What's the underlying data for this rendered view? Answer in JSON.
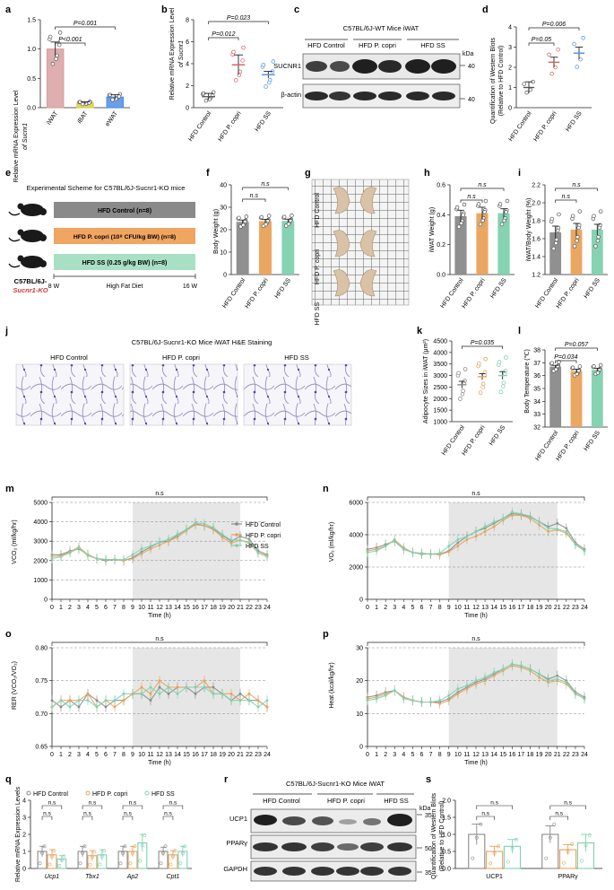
{
  "colors": {
    "control": "#8a8a8a",
    "pcopri": "#e8a25a",
    "ss": "#7fd1b0",
    "red": "#e05a5a",
    "blue": "#4d8fe6",
    "iwat": "#d9a0a0",
    "ibat": "#d9d04a",
    "ewat": "#4d8fe6",
    "axis": "#222222",
    "grid": "#cfcfcf",
    "night": "#e6e6e6"
  },
  "panels": {
    "a": {
      "letter": "a",
      "ylabel_1": "Relative mRNA Expression Level",
      "ylabel_2": "of Sucnr1",
      "yticks": [
        "0.0",
        "0.5",
        "1.0",
        "1.5"
      ],
      "cats": [
        "iWAT",
        "iBAT",
        "eWAT"
      ],
      "p1": "P=0.001",
      "p2": "P<0.001"
    },
    "b": {
      "letter": "b",
      "ylabel_1": "Relative mRNA Expression Level",
      "ylabel_2": "of Sucnr1",
      "yticks": [
        "0",
        "2",
        "4",
        "6",
        "8"
      ],
      "cats": [
        "HFD Control",
        "HFD P. copri",
        "HFD SS"
      ],
      "p1": "P=0.023",
      "p2": "P=0.012"
    },
    "c": {
      "letter": "c",
      "title": "C57BL/6J-WT Mice iWAT",
      "groups": [
        "HFD Control",
        "HFD P. copri",
        "HFD SS"
      ],
      "kda": "kDa",
      "bands": [
        "SUCNR1",
        "β-actin"
      ],
      "mw": [
        "40",
        "40"
      ]
    },
    "d": {
      "letter": "d",
      "ylabel_1": "Quantification of Western Blots",
      "ylabel_2": "(Relative to HFD Control)",
      "yticks": [
        "0",
        "1",
        "2",
        "3",
        "4"
      ],
      "cats": [
        "HFD Control",
        "HFD P. copri",
        "HFD SS"
      ],
      "p1": "P=0.006",
      "p2": "P=0.05"
    },
    "e": {
      "letter": "e",
      "title": "Experimental Scheme for C57BL/6J-Sucnr1-KO mice",
      "bars": [
        "HFD Control (n=8)",
        "HFD P. copri (10⁸ CFU/kg BW) (n=8)",
        "HFD SS (0.25 g/kg BW) (n=8)"
      ],
      "mouse_1": "C57BL/6J-",
      "mouse_2": "Sucnr1-KO",
      "start": "8 W",
      "mid": "High Fat Diet",
      "end": "16 W"
    },
    "f": {
      "letter": "f",
      "ylabel": "Body Weight (g)",
      "yticks": [
        "0",
        "10",
        "20",
        "30",
        "40"
      ],
      "cats": [
        "HFD Control",
        "HFD P. copri",
        "HFD SS"
      ],
      "p1": "n.s",
      "p2": "n.s"
    },
    "g": {
      "letter": "g",
      "rows": [
        "HFD Control",
        "HFD P. copri",
        "HFD SS"
      ]
    },
    "h": {
      "letter": "h",
      "ylabel": "iWAT Weight (g)",
      "yticks": [
        "0.0",
        "0.2",
        "0.4",
        "0.6"
      ],
      "cats": [
        "HFD Control",
        "HFD P. copri",
        "HFD SS"
      ],
      "p1": "n.s",
      "p2": "n.s"
    },
    "i": {
      "letter": "i",
      "ylabel": "iWAT/Body Weight (%)",
      "yticks": [
        "1.2",
        "1.4",
        "1.6",
        "1.8",
        "2.0",
        "2.2"
      ],
      "cats": [
        "HFD Control",
        "HFD P. copri",
        "HFD SS"
      ],
      "p1": "n.s",
      "p2": "n.s"
    },
    "j": {
      "letter": "j",
      "title": "C57BL/6J-Sucnr1-KO Mice iWAT H&E Staining",
      "groups": [
        "HFD Control",
        "HFD P. copri",
        "HFD SS"
      ]
    },
    "k": {
      "letter": "k",
      "ylabel": "Adipocyte Sizes in iWAT (μm²)",
      "yticks": [
        "1000",
        "1500",
        "2000",
        "2500",
        "3000",
        "3500",
        "4000",
        "4500"
      ],
      "cats": [
        "HFD Control",
        "HFD P. copri",
        "HFD SS"
      ],
      "p1": "P=0.035",
      "p2": "n.s"
    },
    "l": {
      "letter": "l",
      "ylabel": "Body Temperature (℃)",
      "yticks": [
        "32",
        "33",
        "34",
        "35",
        "36",
        "37",
        "38"
      ],
      "cats": [
        "HFD Control",
        "HFD P. copri",
        "HFD SS"
      ],
      "p1": "P=0.057",
      "p2": "P=0.034"
    },
    "m": {
      "letter": "m",
      "ylabel": "VCO₂ (ml/kg/hr)",
      "xlabel": "Time (h)",
      "ns": "n.s",
      "yticks": [
        "0",
        "1000",
        "2000",
        "3000",
        "4000",
        "5000"
      ],
      "legend": [
        "HFD Control",
        "HFD P. copri",
        "HFD SS"
      ]
    },
    "n": {
      "letter": "n",
      "ylabel": "VO₂ (ml/kg/hr)",
      "xlabel": "Time (h)",
      "ns": "n.s",
      "yticks": [
        "0",
        "2000",
        "4000",
        "6000"
      ]
    },
    "o": {
      "letter": "o",
      "ylabel": "RER (VCO₂/VO₂)",
      "xlabel": "Time (h)",
      "ns": "n.s",
      "yticks": [
        "0.65",
        "0.70",
        "0.75",
        "0.80"
      ]
    },
    "p": {
      "letter": "p",
      "ylabel": "Heat (kcal/kg/hr)",
      "xlabel": "Time (h)",
      "ns": "n.s",
      "yticks": [
        "0",
        "10",
        "20",
        "30"
      ]
    },
    "q": {
      "letter": "q",
      "ylabel": "Relative mRNA Expression Levels",
      "yticks": [
        "0",
        "1",
        "2",
        "3",
        "4"
      ],
      "genes": [
        "Ucp1",
        "Tbx1",
        "Ap2",
        "Cpt1"
      ],
      "legend": [
        "HFD Control",
        "HFD P. copri",
        "HFD SS"
      ],
      "ns": "n.s"
    },
    "r": {
      "letter": "r",
      "title": "C57BL/6J-Sucnr1-KO Mice iWAT",
      "groups": [
        "HFD Control",
        "HFD P. copri",
        "HFD SS"
      ],
      "kda": "kDa",
      "bands": [
        "UCP1",
        "PPARγ",
        "GAPDH"
      ],
      "mw": [
        "35",
        "50",
        "35"
      ]
    },
    "s": {
      "letter": "s",
      "ylabel_1": "Quantification of Western Blots",
      "ylabel_2": "(Relative to HFD Control)",
      "yticks": [
        "0.0",
        "0.5",
        "1.0",
        "1.5",
        "2.0"
      ],
      "cats": [
        "UCP1",
        "PPARγ"
      ],
      "ns": "n.s"
    }
  },
  "xtime": [
    "0",
    "1",
    "2",
    "3",
    "4",
    "5",
    "6",
    "7",
    "8",
    "9",
    "10",
    "11",
    "12",
    "13",
    "14",
    "15",
    "16",
    "17",
    "18",
    "19",
    "20",
    "21",
    "22",
    "23",
    "24"
  ],
  "chart_data": [
    {
      "panel": "a",
      "type": "bar",
      "categories": [
        "iWAT",
        "iBAT",
        "eWAT"
      ],
      "values": [
        1.0,
        0.08,
        0.18
      ],
      "errors": [
        0.12,
        0.02,
        0.04
      ],
      "ylim": [
        0,
        1.5
      ]
    },
    {
      "panel": "b",
      "type": "bar",
      "categories": [
        "HFD Control",
        "HFD P. copri",
        "HFD SS"
      ],
      "values": [
        1.0,
        3.9,
        3.0
      ],
      "errors": [
        0.3,
        0.9,
        0.3
      ],
      "ylim": [
        0,
        8
      ]
    },
    {
      "panel": "d",
      "type": "bar",
      "categories": [
        "HFD Control",
        "HFD P. copri",
        "HFD SS"
      ],
      "values": [
        1.0,
        2.25,
        2.7
      ],
      "errors": [
        0.28,
        0.25,
        0.3
      ],
      "ylim": [
        0,
        4
      ]
    },
    {
      "panel": "f",
      "type": "bar",
      "categories": [
        "HFD Control",
        "HFD P. copri",
        "HFD SS"
      ],
      "values": [
        23.5,
        23.8,
        23.9
      ],
      "errors": [
        0.8,
        0.8,
        0.8
      ],
      "ylim": [
        0,
        40
      ]
    },
    {
      "panel": "h",
      "type": "bar",
      "categories": [
        "HFD Control",
        "HFD P. copri",
        "HFD SS"
      ],
      "values": [
        0.39,
        0.41,
        0.41
      ],
      "errors": [
        0.04,
        0.04,
        0.03
      ],
      "ylim": [
        0,
        0.6
      ]
    },
    {
      "panel": "i",
      "type": "bar",
      "categories": [
        "HFD Control",
        "HFD P. copri",
        "HFD SS"
      ],
      "values": [
        1.67,
        1.7,
        1.7
      ],
      "errors": [
        0.07,
        0.07,
        0.06
      ],
      "ylim": [
        1.2,
        2.2
      ]
    },
    {
      "panel": "k",
      "type": "scatter",
      "categories": [
        "HFD Control",
        "HFD P. copri",
        "HFD SS"
      ],
      "values": [
        2600,
        2950,
        3000
      ],
      "errors": [
        150,
        130,
        170
      ],
      "ylim": [
        1000,
        4500
      ]
    },
    {
      "panel": "l",
      "type": "bar",
      "categories": [
        "HFD Control",
        "HFD P. copri",
        "HFD SS"
      ],
      "values": [
        36.7,
        36.35,
        36.45
      ],
      "errors": [
        0.1,
        0.15,
        0.12
      ],
      "ylim": [
        32,
        38
      ]
    },
    {
      "panel": "m",
      "type": "line",
      "xlim": [
        0,
        24
      ],
      "ylim": [
        0,
        5000
      ],
      "dark_phase": [
        9,
        21
      ],
      "x": [
        0,
        1,
        2,
        3,
        4,
        5,
        6,
        7,
        8,
        9,
        10,
        11,
        12,
        13,
        14,
        15,
        16,
        17,
        18,
        19,
        20,
        21,
        22,
        23,
        24
      ],
      "series": [
        {
          "name": "HFD Control",
          "values": [
            2300,
            2300,
            2500,
            2600,
            2300,
            2100,
            2000,
            2050,
            2000,
            2150,
            2450,
            2700,
            2950,
            3000,
            3300,
            3600,
            3900,
            3800,
            3650,
            3300,
            3000,
            3250,
            3100,
            2500,
            2300
          ]
        },
        {
          "name": "HFD P. copri",
          "values": [
            2200,
            2250,
            2450,
            2700,
            2300,
            2100,
            2050,
            2050,
            2000,
            2100,
            2350,
            2600,
            2800,
            3000,
            3200,
            3550,
            3850,
            3800,
            3600,
            3200,
            2900,
            3050,
            2900,
            2400,
            2250
          ]
        },
        {
          "name": "HFD SS",
          "values": [
            2100,
            2200,
            2400,
            2650,
            2250,
            2100,
            2050,
            2050,
            2050,
            2300,
            2600,
            2750,
            2950,
            3100,
            3350,
            3600,
            3950,
            3900,
            3700,
            3350,
            3050,
            3050,
            2950,
            2400,
            2200
          ]
        }
      ]
    },
    {
      "panel": "n",
      "type": "line",
      "xlim": [
        0,
        24
      ],
      "ylim": [
        0,
        6000
      ],
      "dark_phase": [
        9,
        21
      ],
      "x": [
        0,
        1,
        2,
        3,
        4,
        5,
        6,
        7,
        8,
        9,
        10,
        11,
        12,
        13,
        14,
        15,
        16,
        17,
        18,
        19,
        20,
        21,
        22,
        23,
        24
      ],
      "series": [
        {
          "name": "HFD Control",
          "values": [
            3100,
            3200,
            3400,
            3600,
            3100,
            2900,
            2800,
            2800,
            2800,
            3000,
            3500,
            3900,
            4200,
            4400,
            4700,
            5000,
            5300,
            5250,
            5100,
            4800,
            4500,
            4700,
            4400,
            3500,
            3100
          ]
        },
        {
          "name": "HFD P. copri",
          "values": [
            3000,
            3100,
            3300,
            3700,
            3200,
            2900,
            2850,
            2800,
            2750,
            2950,
            3300,
            3700,
            3900,
            4200,
            4500,
            4900,
            5200,
            5200,
            5000,
            4600,
            4200,
            4300,
            4100,
            3400,
            3000
          ]
        },
        {
          "name": "HFD SS",
          "values": [
            2900,
            3000,
            3300,
            3650,
            3100,
            2900,
            2850,
            2800,
            2850,
            3300,
            3700,
            3900,
            4200,
            4500,
            4800,
            5000,
            5400,
            5300,
            5150,
            4800,
            4400,
            4350,
            4200,
            3400,
            3000
          ]
        }
      ]
    },
    {
      "panel": "o",
      "type": "line",
      "xlim": [
        0,
        24
      ],
      "ylim": [
        0.65,
        0.8
      ],
      "dark_phase": [
        9,
        21
      ],
      "x": [
        0,
        1,
        2,
        3,
        4,
        5,
        6,
        7,
        8,
        9,
        10,
        11,
        12,
        13,
        14,
        15,
        16,
        17,
        18,
        19,
        20,
        21,
        22,
        23,
        24
      ],
      "series": [
        {
          "name": "HFD Control",
          "values": [
            0.72,
            0.71,
            0.72,
            0.71,
            0.73,
            0.72,
            0.71,
            0.72,
            0.72,
            0.73,
            0.73,
            0.72,
            0.74,
            0.73,
            0.74,
            0.74,
            0.73,
            0.74,
            0.74,
            0.73,
            0.72,
            0.73,
            0.72,
            0.72,
            0.71
          ]
        },
        {
          "name": "HFD P. copri",
          "values": [
            0.71,
            0.72,
            0.72,
            0.72,
            0.73,
            0.71,
            0.72,
            0.71,
            0.72,
            0.73,
            0.74,
            0.73,
            0.75,
            0.74,
            0.74,
            0.74,
            0.74,
            0.75,
            0.73,
            0.73,
            0.73,
            0.72,
            0.73,
            0.72,
            0.71
          ]
        },
        {
          "name": "HFD SS",
          "values": [
            0.71,
            0.72,
            0.71,
            0.72,
            0.72,
            0.71,
            0.72,
            0.72,
            0.73,
            0.73,
            0.73,
            0.74,
            0.73,
            0.74,
            0.73,
            0.74,
            0.74,
            0.74,
            0.73,
            0.73,
            0.72,
            0.72,
            0.72,
            0.71,
            0.72
          ]
        }
      ]
    },
    {
      "panel": "p",
      "type": "line",
      "xlim": [
        0,
        24
      ],
      "ylim": [
        0,
        30
      ],
      "dark_phase": [
        9,
        21
      ],
      "x": [
        0,
        1,
        2,
        3,
        4,
        5,
        6,
        7,
        8,
        9,
        10,
        11,
        12,
        13,
        14,
        15,
        16,
        17,
        18,
        19,
        20,
        21,
        22,
        23,
        24
      ],
      "series": [
        {
          "name": "HFD Control",
          "values": [
            15,
            15.5,
            16.5,
            17,
            15,
            14,
            13.5,
            13.5,
            13.5,
            14.5,
            16.5,
            18,
            19.5,
            20.5,
            22,
            23.5,
            25,
            24.5,
            23.5,
            22,
            20.5,
            21.5,
            20,
            16.5,
            15
          ]
        },
        {
          "name": "HFD P. copri",
          "values": [
            14.5,
            15,
            16,
            17,
            15,
            14,
            13.5,
            13.5,
            13,
            14,
            16,
            17.5,
            19,
            20,
            21.5,
            23,
            24.5,
            24,
            23,
            21,
            19.5,
            20,
            19,
            16,
            14.5
          ]
        },
        {
          "name": "HFD SS",
          "values": [
            14,
            14.5,
            15.5,
            17,
            14.5,
            14,
            13.5,
            13.5,
            14,
            15.5,
            17.5,
            18.5,
            20,
            21,
            22.5,
            23.5,
            25,
            24.5,
            23.5,
            22,
            20,
            20.5,
            19.5,
            16,
            14.5
          ]
        }
      ]
    },
    {
      "panel": "q",
      "type": "bar",
      "categories": [
        "Ucp1",
        "Tbx1",
        "Ap2",
        "Cpt1"
      ],
      "series": [
        {
          "name": "HFD Control",
          "values": [
            1.0,
            1.0,
            1.0,
            1.0
          ],
          "errors": [
            0.3,
            0.3,
            0.3,
            0.25
          ]
        },
        {
          "name": "HFD P. copri",
          "values": [
            0.8,
            0.75,
            1.0,
            0.8
          ],
          "errors": [
            0.3,
            0.3,
            0.3,
            0.25
          ]
        },
        {
          "name": "HFD SS",
          "values": [
            0.55,
            0.8,
            1.5,
            1.0
          ],
          "errors": [
            0.2,
            0.3,
            0.5,
            0.3
          ]
        }
      ],
      "ylim": [
        0,
        4
      ]
    },
    {
      "panel": "s",
      "type": "bar",
      "categories": [
        "UCP1",
        "PPARγ"
      ],
      "series": [
        {
          "name": "HFD Control",
          "values": [
            1.0,
            1.0
          ],
          "errors": [
            0.3,
            0.25
          ]
        },
        {
          "name": "HFD P. copri",
          "values": [
            0.5,
            0.55
          ],
          "errors": [
            0.15,
            0.15
          ]
        },
        {
          "name": "HFD SS",
          "values": [
            0.65,
            0.75
          ],
          "errors": [
            0.2,
            0.25
          ]
        }
      ],
      "ylim": [
        0,
        2
      ]
    }
  ]
}
